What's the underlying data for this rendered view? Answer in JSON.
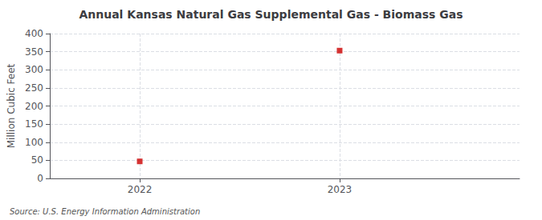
{
  "chart_data": {
    "type": "scatter",
    "title": "Annual Kansas Natural Gas Supplemental Gas - Biomass Gas",
    "ylabel": "Million Cubic Feet",
    "source": "Source: U.S. Energy Information Administration",
    "x": [
      2022,
      2023
    ],
    "values": [
      47,
      353
    ],
    "color": "#cc0000",
    "marker": "square",
    "xlim": [
      2021.55,
      2023.9
    ],
    "xticks": [
      2022,
      2023
    ],
    "ylim": [
      0,
      400
    ],
    "yticks": [
      0,
      50,
      100,
      150,
      200,
      250,
      300,
      350,
      400
    ],
    "grid": true
  }
}
